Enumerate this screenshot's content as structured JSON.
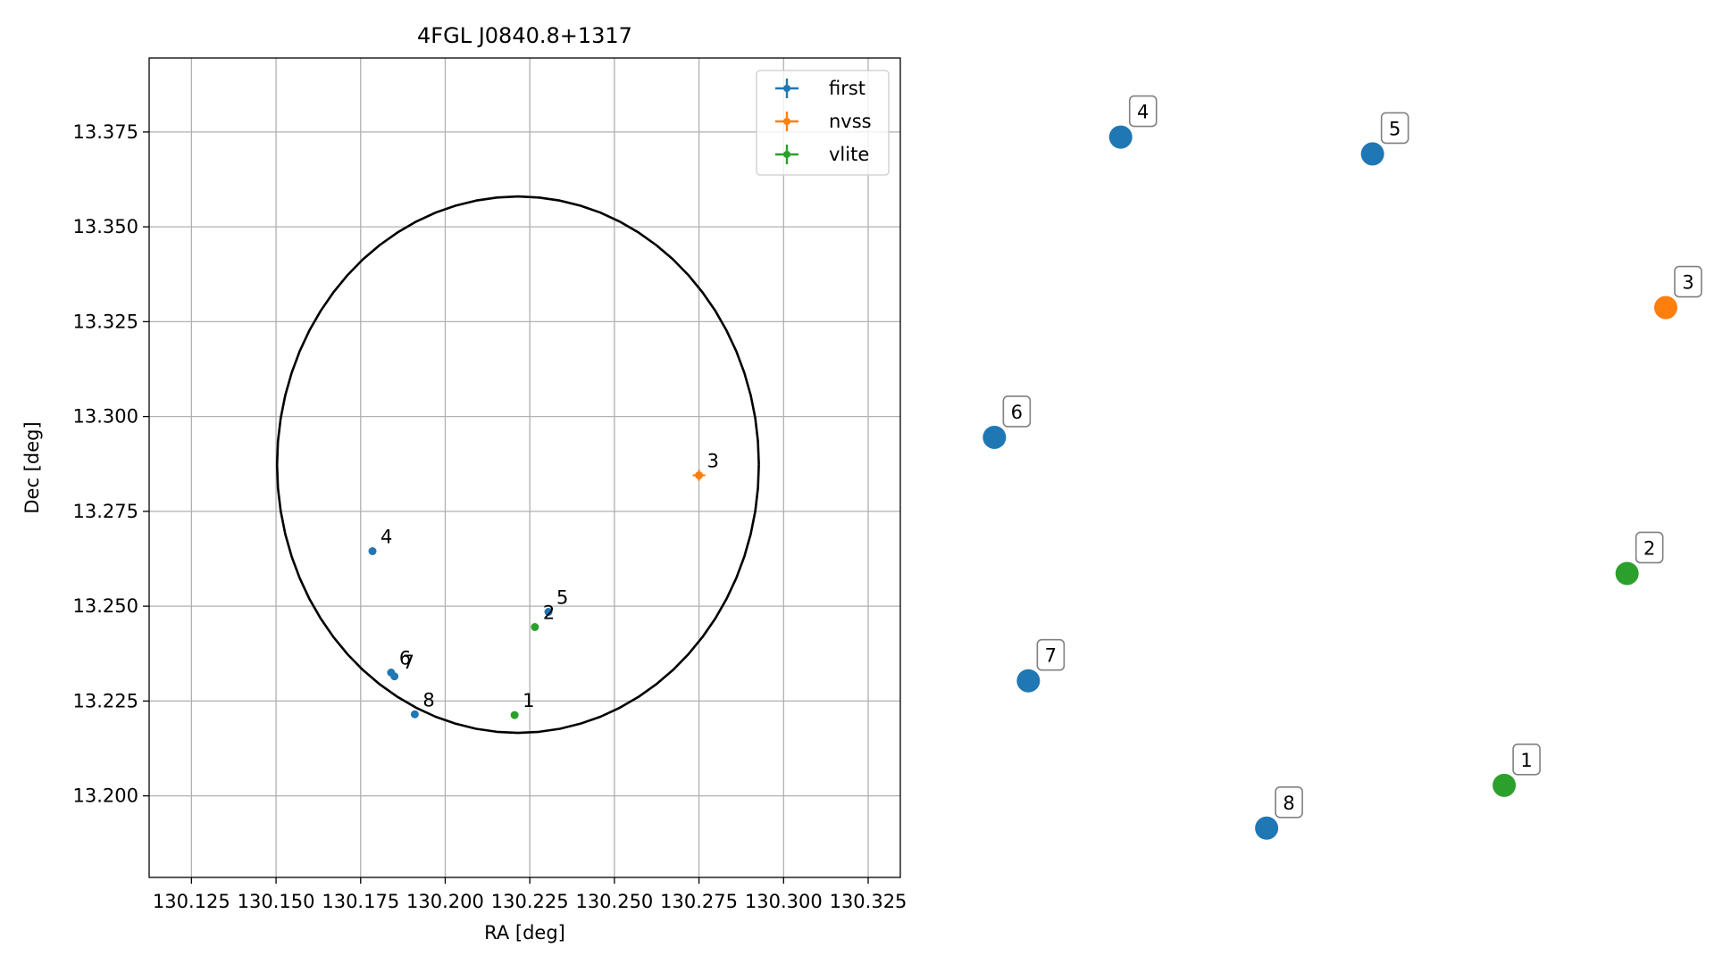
{
  "chart_data": [
    {
      "type": "scatter",
      "title": "4FGL J0840.8+1317",
      "xlabel": "RA [deg]",
      "ylabel": "Dec [deg]",
      "xlim": [
        130.1125,
        130.3345
      ],
      "ylim": [
        13.1785,
        13.3945
      ],
      "xticks": [
        130.125,
        130.15,
        130.175,
        130.2,
        130.225,
        130.25,
        130.275,
        130.3,
        130.325
      ],
      "xtick_labels": [
        "130.125",
        "130.150",
        "130.175",
        "130.200",
        "130.225",
        "130.250",
        "130.275",
        "130.300",
        "130.325"
      ],
      "yticks": [
        13.2,
        13.225,
        13.25,
        13.275,
        13.3,
        13.325,
        13.35,
        13.375
      ],
      "ytick_labels": [
        "13.200",
        "13.225",
        "13.250",
        "13.275",
        "13.300",
        "13.325",
        "13.350",
        "13.375"
      ],
      "grid": true,
      "legend_position": "top-right",
      "series": [
        {
          "name": "first",
          "color": "#1f77b4",
          "points": [
            {
              "label": "4",
              "ra": 130.1785,
              "dec": 13.2645
            },
            {
              "label": "5",
              "ra": 130.2305,
              "dec": 13.2485
            },
            {
              "label": "6",
              "ra": 130.184,
              "dec": 13.2325
            },
            {
              "label": "7",
              "ra": 130.185,
              "dec": 13.2315
            },
            {
              "label": "8",
              "ra": 130.191,
              "dec": 13.2215
            }
          ]
        },
        {
          "name": "nvss",
          "color": "#ff7f0e",
          "points": [
            {
              "label": "3",
              "ra": 130.275,
              "dec": 13.2845
            }
          ]
        },
        {
          "name": "vlite",
          "color": "#2ca02c",
          "points": [
            {
              "label": "1",
              "ra": 130.2205,
              "dec": 13.2213
            },
            {
              "label": "2",
              "ra": 130.2265,
              "dec": 13.2445
            }
          ]
        }
      ],
      "ellipse": {
        "center_ra": 130.2215,
        "center_dec": 13.2873,
        "semi_ra": 0.0712,
        "semi_dec": 0.0707,
        "color": "#000000"
      }
    },
    {
      "type": "scatter",
      "title": "",
      "axes_visible": false,
      "points": [
        {
          "label": "1",
          "x": 0.762,
          "y": 0.074,
          "color": "#2ca02c"
        },
        {
          "label": "2",
          "x": 0.943,
          "y": 0.376,
          "color": "#2ca02c"
        },
        {
          "label": "3",
          "x": 1.0,
          "y": 0.755,
          "color": "#ff7f0e"
        },
        {
          "label": "4",
          "x": 0.197,
          "y": 0.998,
          "color": "#1f77b4"
        },
        {
          "label": "5",
          "x": 0.568,
          "y": 0.974,
          "color": "#1f77b4"
        },
        {
          "label": "6",
          "x": 0.011,
          "y": 0.57,
          "color": "#1f77b4"
        },
        {
          "label": "7",
          "x": 0.061,
          "y": 0.223,
          "color": "#1f77b4"
        },
        {
          "label": "8",
          "x": 0.412,
          "y": 0.013,
          "color": "#1f77b4"
        }
      ]
    }
  ]
}
